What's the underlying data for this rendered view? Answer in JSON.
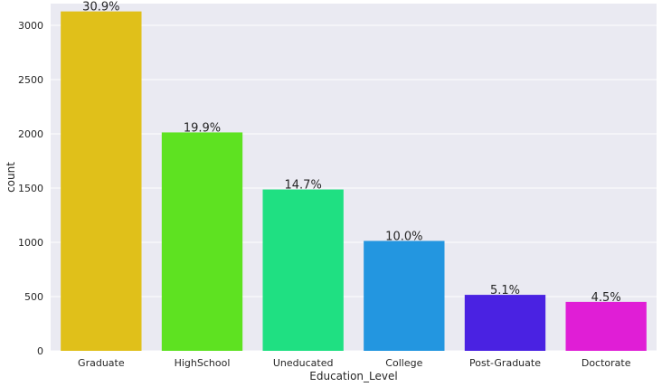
{
  "chart_data": {
    "type": "bar",
    "categories": [
      "Graduate",
      "HighSchool",
      "Uneducated",
      "College",
      "Post-Graduate",
      "Doctorate"
    ],
    "values": [
      3128,
      2013,
      1487,
      1013,
      516,
      451
    ],
    "data_labels": [
      "30.9%",
      "19.9%",
      "14.7%",
      "10.0%",
      "5.1%",
      "4.5%"
    ],
    "colors": [
      "#e0c01a",
      "#5ee221",
      "#1fe082",
      "#2396e0",
      "#4a22e2",
      "#e01ed6"
    ],
    "xlabel": "Education_Level",
    "ylabel": "count",
    "ylim": [
      0,
      3200
    ],
    "yticks": [
      0,
      500,
      1000,
      1500,
      2000,
      2500,
      3000
    ],
    "ytick_labels": [
      "0",
      "500",
      "1000",
      "1500",
      "2000",
      "2500",
      "3000"
    ],
    "grid": true,
    "background": "#eaeaf2",
    "grid_color": "#ffffff"
  }
}
